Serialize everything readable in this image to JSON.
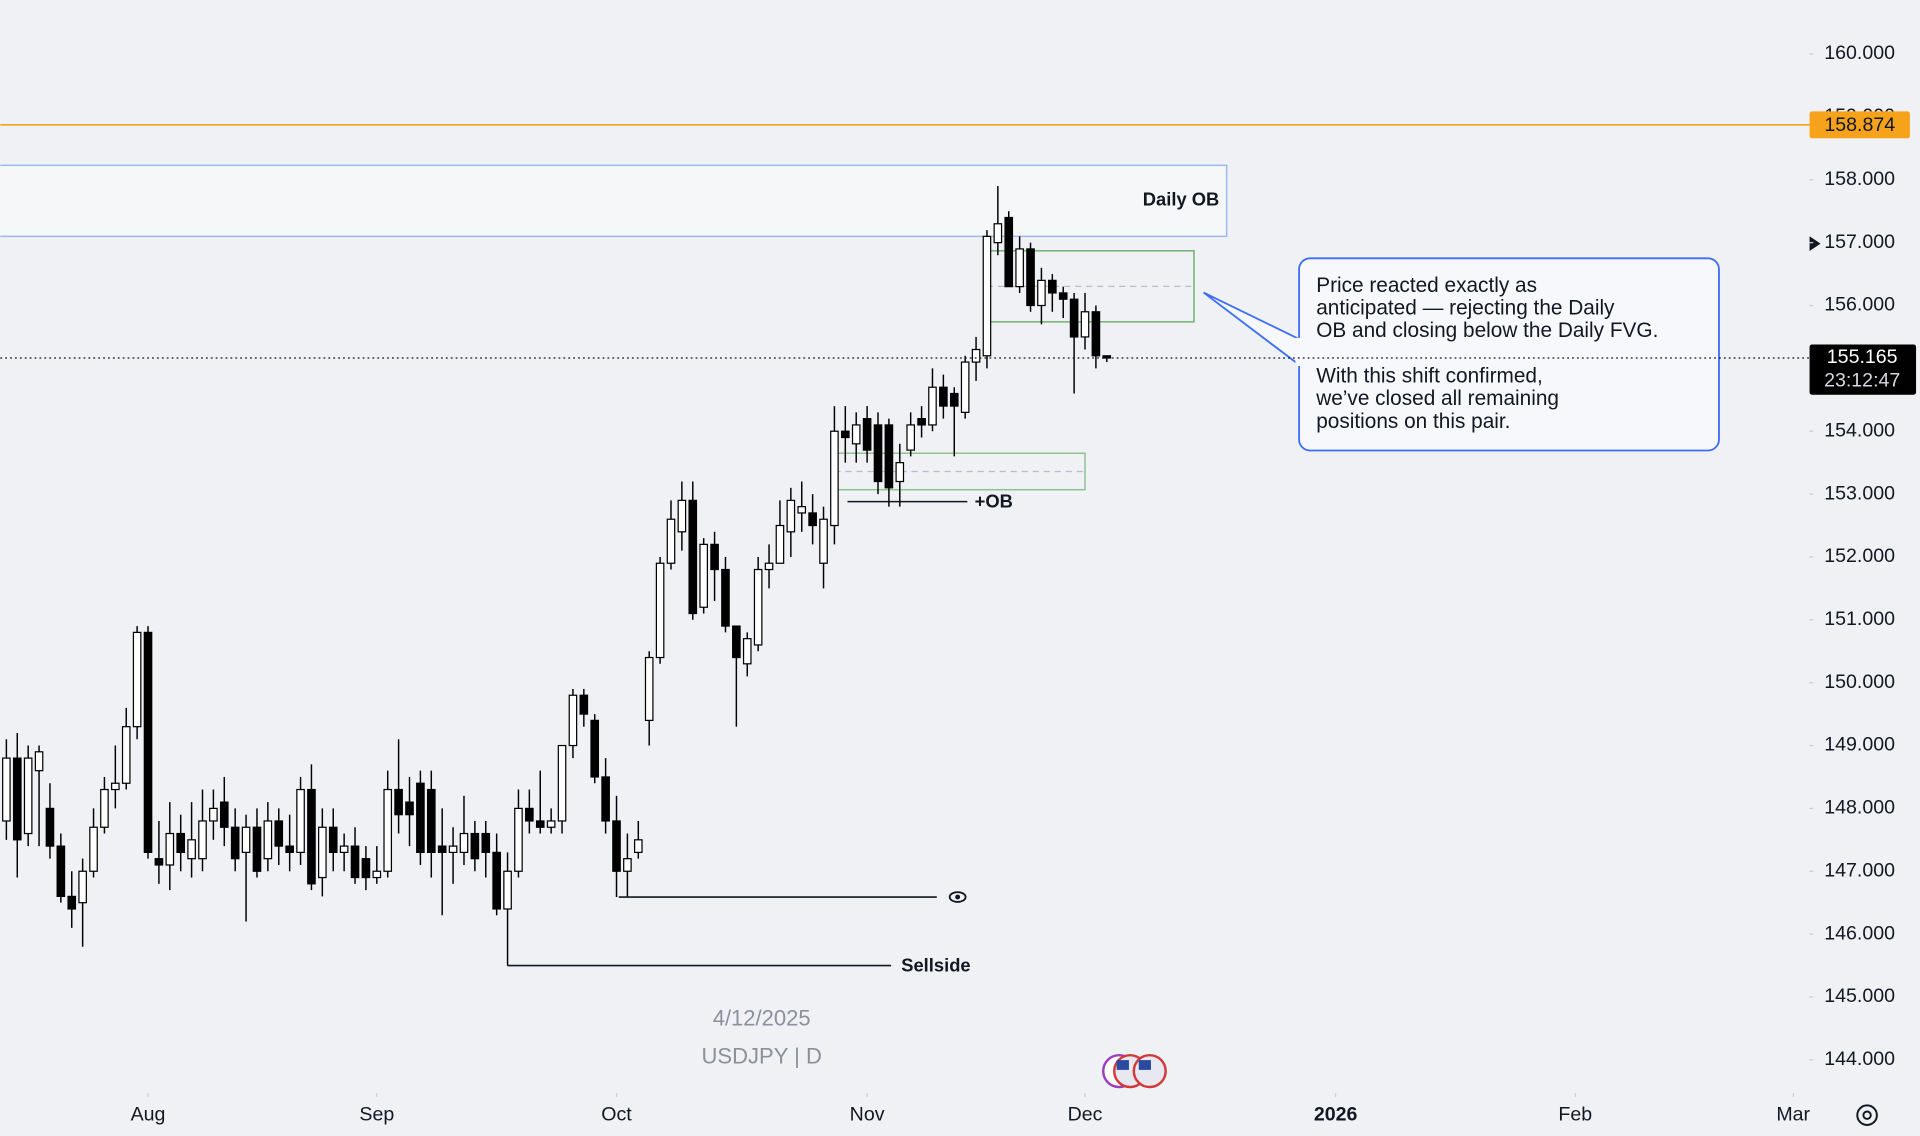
{
  "chart_data": {
    "type": "candlestick",
    "date_label": "4/12/2025",
    "symbol_label": "USDJPY | D",
    "ohlc": [
      [
        147.8,
        149.1,
        147.5,
        148.8
      ],
      [
        148.8,
        149.2,
        146.9,
        147.5
      ],
      [
        147.6,
        149.0,
        147.4,
        148.8
      ],
      [
        148.6,
        149.0,
        147.4,
        148.9
      ],
      [
        148.0,
        148.4,
        147.2,
        147.4
      ],
      [
        147.4,
        147.6,
        146.5,
        146.6
      ],
      [
        146.6,
        147.0,
        146.1,
        146.4
      ],
      [
        146.5,
        147.2,
        145.8,
        147.0
      ],
      [
        147.0,
        148.0,
        146.9,
        147.7
      ],
      [
        147.7,
        148.5,
        147.6,
        148.3
      ],
      [
        148.3,
        149.0,
        148.0,
        148.4
      ],
      [
        148.4,
        149.6,
        148.3,
        149.3
      ],
      [
        149.3,
        150.9,
        149.1,
        150.8
      ],
      [
        150.8,
        150.9,
        147.2,
        147.3
      ],
      [
        147.2,
        147.8,
        146.8,
        147.1
      ],
      [
        147.1,
        148.1,
        146.7,
        147.6
      ],
      [
        147.6,
        147.9,
        147.0,
        147.3
      ],
      [
        147.2,
        148.1,
        146.9,
        147.5
      ],
      [
        147.2,
        148.3,
        147.0,
        147.8
      ],
      [
        147.8,
        148.3,
        147.5,
        148.0
      ],
      [
        148.1,
        148.5,
        147.4,
        147.7
      ],
      [
        147.7,
        148.0,
        147.0,
        147.2
      ],
      [
        147.3,
        147.9,
        146.2,
        147.7
      ],
      [
        147.7,
        148.0,
        146.9,
        147.0
      ],
      [
        147.2,
        148.1,
        147.0,
        147.8
      ],
      [
        147.8,
        148.0,
        147.1,
        147.4
      ],
      [
        147.4,
        147.9,
        147.0,
        147.3
      ],
      [
        147.3,
        148.5,
        147.1,
        148.3
      ],
      [
        148.3,
        148.7,
        146.7,
        146.8
      ],
      [
        146.9,
        148.0,
        146.6,
        147.7
      ],
      [
        147.7,
        148.0,
        147.0,
        147.3
      ],
      [
        147.3,
        147.6,
        147.0,
        147.4
      ],
      [
        147.4,
        147.7,
        146.8,
        146.9
      ],
      [
        147.2,
        147.4,
        146.7,
        146.9
      ],
      [
        146.9,
        147.4,
        146.8,
        147.0
      ],
      [
        147.0,
        148.6,
        146.9,
        148.3
      ],
      [
        148.3,
        149.1,
        147.6,
        147.9
      ],
      [
        148.1,
        148.5,
        147.4,
        147.9
      ],
      [
        148.4,
        148.6,
        147.1,
        147.3
      ],
      [
        148.3,
        148.6,
        146.9,
        147.3
      ],
      [
        147.4,
        148.0,
        146.3,
        147.3
      ],
      [
        147.3,
        147.7,
        146.8,
        147.4
      ],
      [
        147.3,
        148.2,
        147.1,
        147.6
      ],
      [
        147.6,
        147.8,
        147.0,
        147.2
      ],
      [
        147.6,
        147.8,
        146.9,
        147.3
      ],
      [
        147.3,
        147.6,
        146.3,
        146.4
      ],
      [
        146.4,
        147.3,
        145.5,
        147.0
      ],
      [
        147.0,
        148.3,
        146.9,
        148.0
      ],
      [
        148.0,
        148.3,
        147.6,
        147.8
      ],
      [
        147.8,
        148.6,
        147.6,
        147.7
      ],
      [
        147.7,
        148.0,
        147.6,
        147.8
      ],
      [
        147.8,
        149.0,
        147.6,
        149.0
      ],
      [
        149.0,
        149.9,
        148.8,
        149.8
      ],
      [
        149.8,
        149.9,
        149.3,
        149.5
      ],
      [
        149.4,
        149.5,
        148.4,
        148.5
      ],
      [
        148.5,
        148.8,
        147.6,
        147.8
      ],
      [
        147.8,
        148.2,
        146.59,
        147.0
      ],
      [
        147.0,
        147.6,
        146.6,
        147.2
      ],
      [
        147.3,
        147.8,
        147.2,
        147.5
      ],
      [
        149.4,
        150.5,
        149.0,
        150.4
      ],
      [
        150.4,
        152.0,
        150.3,
        151.9
      ],
      [
        151.9,
        152.9,
        151.8,
        152.6
      ],
      [
        152.4,
        153.2,
        152.1,
        152.9
      ],
      [
        152.9,
        153.2,
        151.0,
        151.1
      ],
      [
        151.2,
        152.3,
        151.1,
        152.2
      ],
      [
        152.2,
        152.4,
        151.3,
        151.8
      ],
      [
        151.8,
        152.0,
        150.8,
        150.9
      ],
      [
        150.9,
        150.9,
        149.3,
        150.4
      ],
      [
        150.3,
        150.8,
        150.1,
        150.7
      ],
      [
        150.6,
        152.0,
        150.5,
        151.8
      ],
      [
        151.8,
        152.2,
        151.5,
        151.9
      ],
      [
        151.9,
        152.9,
        151.9,
        152.5
      ],
      [
        152.4,
        153.1,
        152.0,
        152.9
      ],
      [
        152.7,
        153.2,
        152.4,
        152.8
      ],
      [
        152.7,
        153.0,
        152.2,
        152.5
      ],
      [
        151.9,
        152.8,
        151.5,
        152.6
      ],
      [
        152.5,
        154.4,
        152.2,
        154.0
      ],
      [
        154.0,
        154.4,
        153.5,
        153.9
      ],
      [
        153.8,
        154.3,
        153.5,
        154.1
      ],
      [
        154.2,
        154.4,
        153.5,
        153.7
      ],
      [
        154.1,
        154.3,
        153.0,
        153.2
      ],
      [
        154.1,
        154.2,
        152.8,
        153.1
      ],
      [
        153.2,
        153.8,
        152.8,
        153.5
      ],
      [
        153.7,
        154.3,
        153.6,
        154.1
      ],
      [
        154.2,
        154.4,
        153.9,
        154.1
      ],
      [
        154.1,
        155.0,
        154.0,
        154.7
      ],
      [
        154.7,
        154.9,
        154.2,
        154.4
      ],
      [
        154.6,
        154.7,
        153.6,
        154.4
      ],
      [
        154.3,
        155.2,
        154.2,
        155.1
      ],
      [
        155.1,
        155.5,
        154.8,
        155.3
      ],
      [
        155.2,
        157.2,
        155.0,
        157.1
      ],
      [
        157.0,
        157.9,
        156.8,
        157.3
      ],
      [
        157.4,
        157.5,
        156.3,
        156.3
      ],
      [
        156.3,
        157.1,
        156.2,
        156.9
      ],
      [
        156.9,
        157.0,
        155.9,
        156.0
      ],
      [
        156.0,
        156.6,
        155.7,
        156.4
      ],
      [
        156.4,
        156.5,
        155.9,
        156.2
      ],
      [
        156.2,
        156.3,
        155.8,
        156.1
      ],
      [
        156.1,
        156.2,
        154.6,
        155.5
      ],
      [
        155.5,
        156.2,
        155.3,
        155.9
      ],
      [
        155.9,
        156.0,
        155.0,
        155.2
      ],
      [
        155.2,
        155.2,
        155.1,
        155.165
      ]
    ],
    "xlim": [
      -0.56,
      165.5
    ],
    "xticks": [
      {
        "value": 13,
        "label": "Aug"
      },
      {
        "value": 34,
        "label": "Sep"
      },
      {
        "value": 56,
        "label": "Oct"
      },
      {
        "value": 79,
        "label": "Nov"
      },
      {
        "value": 99,
        "label": "Dec"
      },
      {
        "value": 122,
        "label": "2026"
      },
      {
        "value": 144,
        "label": "Feb"
      },
      {
        "value": 164,
        "label": "Mar"
      }
    ],
    "ylim": [
      143.47,
      160.86
    ],
    "yticks": [
      {
        "value": 144,
        "label": "144.000"
      },
      {
        "value": 145,
        "label": "145.000"
      },
      {
        "value": 146,
        "label": "146.000"
      },
      {
        "value": 147,
        "label": "147.000"
      },
      {
        "value": 148,
        "label": "148.000"
      },
      {
        "value": 149,
        "label": "149.000"
      },
      {
        "value": 150,
        "label": "150.000"
      },
      {
        "value": 151,
        "label": "151.000"
      },
      {
        "value": 152,
        "label": "152.000"
      },
      {
        "value": 153,
        "label": "153.000"
      },
      {
        "value": 154,
        "label": "154.000"
      },
      {
        "value": 155,
        "label": "155.000"
      },
      {
        "value": 156,
        "label": "156.000"
      },
      {
        "value": 157,
        "label": "157.000"
      },
      {
        "value": 158,
        "label": "158.000"
      },
      {
        "value": 159,
        "label": "159.000"
      },
      {
        "value": 160,
        "label": "160.000"
      }
    ],
    "price_line": {
      "value": 158.874,
      "label": "158.874",
      "color": "#f7a21b"
    },
    "last_price": {
      "value": 155.165,
      "label": "155.165",
      "countdown": "23:12:47"
    },
    "zones": [
      {
        "label": "Daily OB",
        "x": [
          -1,
          112
        ],
        "y": [
          157.1,
          158.23
        ],
        "color": "#9bb8ef"
      },
      {
        "x": [
          90,
          109
        ],
        "y": [
          155.74,
          156.87
        ],
        "color": "#6fae6f"
      },
      {
        "x": [
          76,
          99
        ],
        "y": [
          153.07,
          153.65
        ],
        "color": "#8fc08f"
      }
    ],
    "levels": [
      {
        "label": "+OB",
        "value": 152.88,
        "x": [
          77.2,
          88.2
        ]
      },
      {
        "value": 146.59,
        "x": [
          56.2,
          85.4
        ]
      },
      {
        "label": "Sellside",
        "value": 145.5,
        "x": [
          46,
          81.2
        ]
      }
    ],
    "callout": {
      "paragraphs": [
        [
          "Price reacted exactly as",
          "anticipated — rejecting the Daily",
          "OB and closing below the Daily FVG."
        ],
        [
          "With this shift confirmed,",
          "we’ve closed all remaining",
          "positions on this pair."
        ]
      ]
    }
  }
}
